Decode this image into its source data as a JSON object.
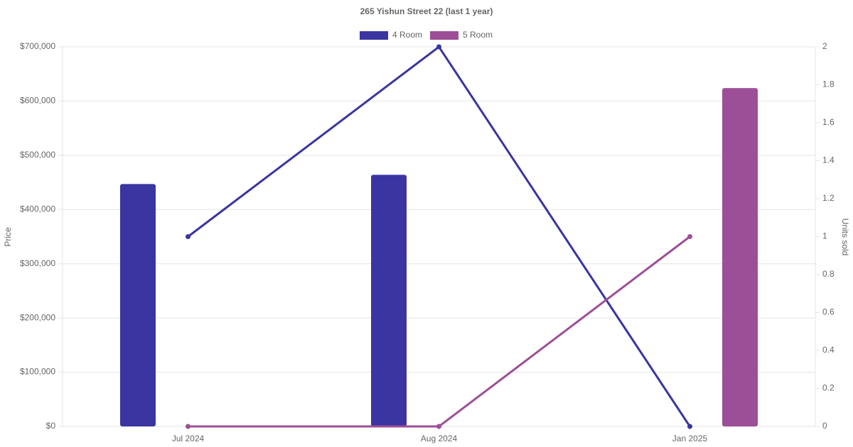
{
  "chart_data": {
    "type": "bar",
    "title": "265 Yishun Street 22 (last 1 year)",
    "y_label": "Price",
    "y2_label": "Units sold",
    "categories": [
      "Jul 2024",
      "Aug 2024",
      "Jan 2025"
    ],
    "series": [
      {
        "name": "4 Room",
        "color": "#3a35a0",
        "values": [
          447000,
          464000,
          null
        ],
        "units_sold": [
          1,
          2,
          0
        ]
      },
      {
        "name": "5 Room",
        "color": "#9c4f96",
        "values": [
          null,
          null,
          624000
        ],
        "units_sold": [
          0,
          0,
          1
        ]
      }
    ],
    "ylim": [
      0,
      700000
    ],
    "yticks": [
      {
        "value": 0,
        "label": "$0"
      },
      {
        "value": 100000,
        "label": "$100,000"
      },
      {
        "value": 200000,
        "label": "$200,000"
      },
      {
        "value": 300000,
        "label": "$300,000"
      },
      {
        "value": 400000,
        "label": "$400,000"
      },
      {
        "value": 500000,
        "label": "$500,000"
      },
      {
        "value": 600000,
        "label": "$600,000"
      },
      {
        "value": 700000,
        "label": "$700,000"
      }
    ],
    "y2lim": [
      0,
      2
    ],
    "y2ticks": [
      0,
      0.2,
      0.4,
      0.6,
      0.8,
      1,
      1.2,
      1.4,
      1.6,
      1.8,
      2
    ],
    "grid": true,
    "legend": "top"
  }
}
